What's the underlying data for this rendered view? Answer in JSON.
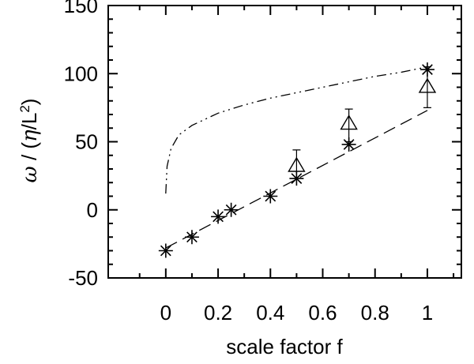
{
  "chart_data": {
    "type": "scatter",
    "xlabel": "scale factor f",
    "ylabel": {
      "parts": [
        {
          "key": "omega",
          "text": "ω",
          "style": "symbol"
        },
        {
          "key": "slash",
          "text": " / (",
          "style": "normal"
        },
        {
          "key": "eta",
          "text": "η",
          "style": "symbol"
        },
        {
          "key": "rest",
          "text": "/L",
          "style": "normal"
        },
        {
          "key": "sup",
          "text": "2",
          "style": "sup"
        },
        {
          "key": "close",
          "text": ")",
          "style": "normal"
        }
      ]
    },
    "xlim": [
      -0.22,
      1.13
    ],
    "ylim": [
      -50,
      150
    ],
    "xticks": [
      {
        "value": 0,
        "label": "0"
      },
      {
        "value": 0.2,
        "label": "0.2"
      },
      {
        "value": 0.4,
        "label": "0.4"
      },
      {
        "value": 0.6,
        "label": "0.6"
      },
      {
        "value": 0.8,
        "label": "0.8"
      },
      {
        "value": 1,
        "label": "1"
      }
    ],
    "x_minor_ticks": [
      -0.1,
      0.1,
      0.3,
      0.5,
      0.7,
      0.9,
      1.1
    ],
    "yticks": [
      {
        "value": -50,
        "label": "-50"
      },
      {
        "value": 0,
        "label": "0"
      },
      {
        "value": 50,
        "label": "50"
      },
      {
        "value": 100,
        "label": "100"
      },
      {
        "value": 150,
        "label": "150"
      }
    ],
    "y_minor_ticks": [
      -40,
      -30,
      -20,
      -10,
      10,
      20,
      30,
      40,
      60,
      70,
      80,
      90,
      110,
      120,
      130,
      140
    ],
    "grid": false,
    "series": [
      {
        "marker": "asterisk",
        "points": [
          {
            "x": 0,
            "y": -30
          },
          {
            "x": 0.1,
            "y": -20
          },
          {
            "x": 0.2,
            "y": -5
          },
          {
            "x": 0.25,
            "y": 0
          },
          {
            "x": 0.4,
            "y": 10
          },
          {
            "x": 0.5,
            "y": 23
          },
          {
            "x": 0.7,
            "y": 48
          },
          {
            "x": 1,
            "y": 103
          }
        ]
      },
      {
        "marker": "triangle",
        "points": [
          {
            "x": 0.5,
            "y": 32,
            "err_low": 23,
            "err_high": 44
          },
          {
            "x": 0.7,
            "y": 63,
            "err_low": 50,
            "err_high": 74
          },
          {
            "x": 1,
            "y": 90,
            "err_low": 75,
            "err_high": 105
          }
        ]
      }
    ],
    "lines": [
      {
        "style": "dashed",
        "points": [
          [
            0,
            -28
          ],
          [
            1,
            73
          ]
        ]
      },
      {
        "style": "dash-dot-dot",
        "points": [
          [
            0,
            12
          ],
          [
            0.005,
            32
          ],
          [
            0.02,
            45
          ],
          [
            0.05,
            55
          ],
          [
            0.1,
            62
          ],
          [
            0.2,
            71
          ],
          [
            0.3,
            77
          ],
          [
            0.4,
            82
          ],
          [
            0.5,
            86
          ],
          [
            0.6,
            90
          ],
          [
            0.7,
            94
          ],
          [
            0.8,
            98
          ],
          [
            0.9,
            101
          ],
          [
            1,
            105
          ]
        ]
      }
    ]
  }
}
